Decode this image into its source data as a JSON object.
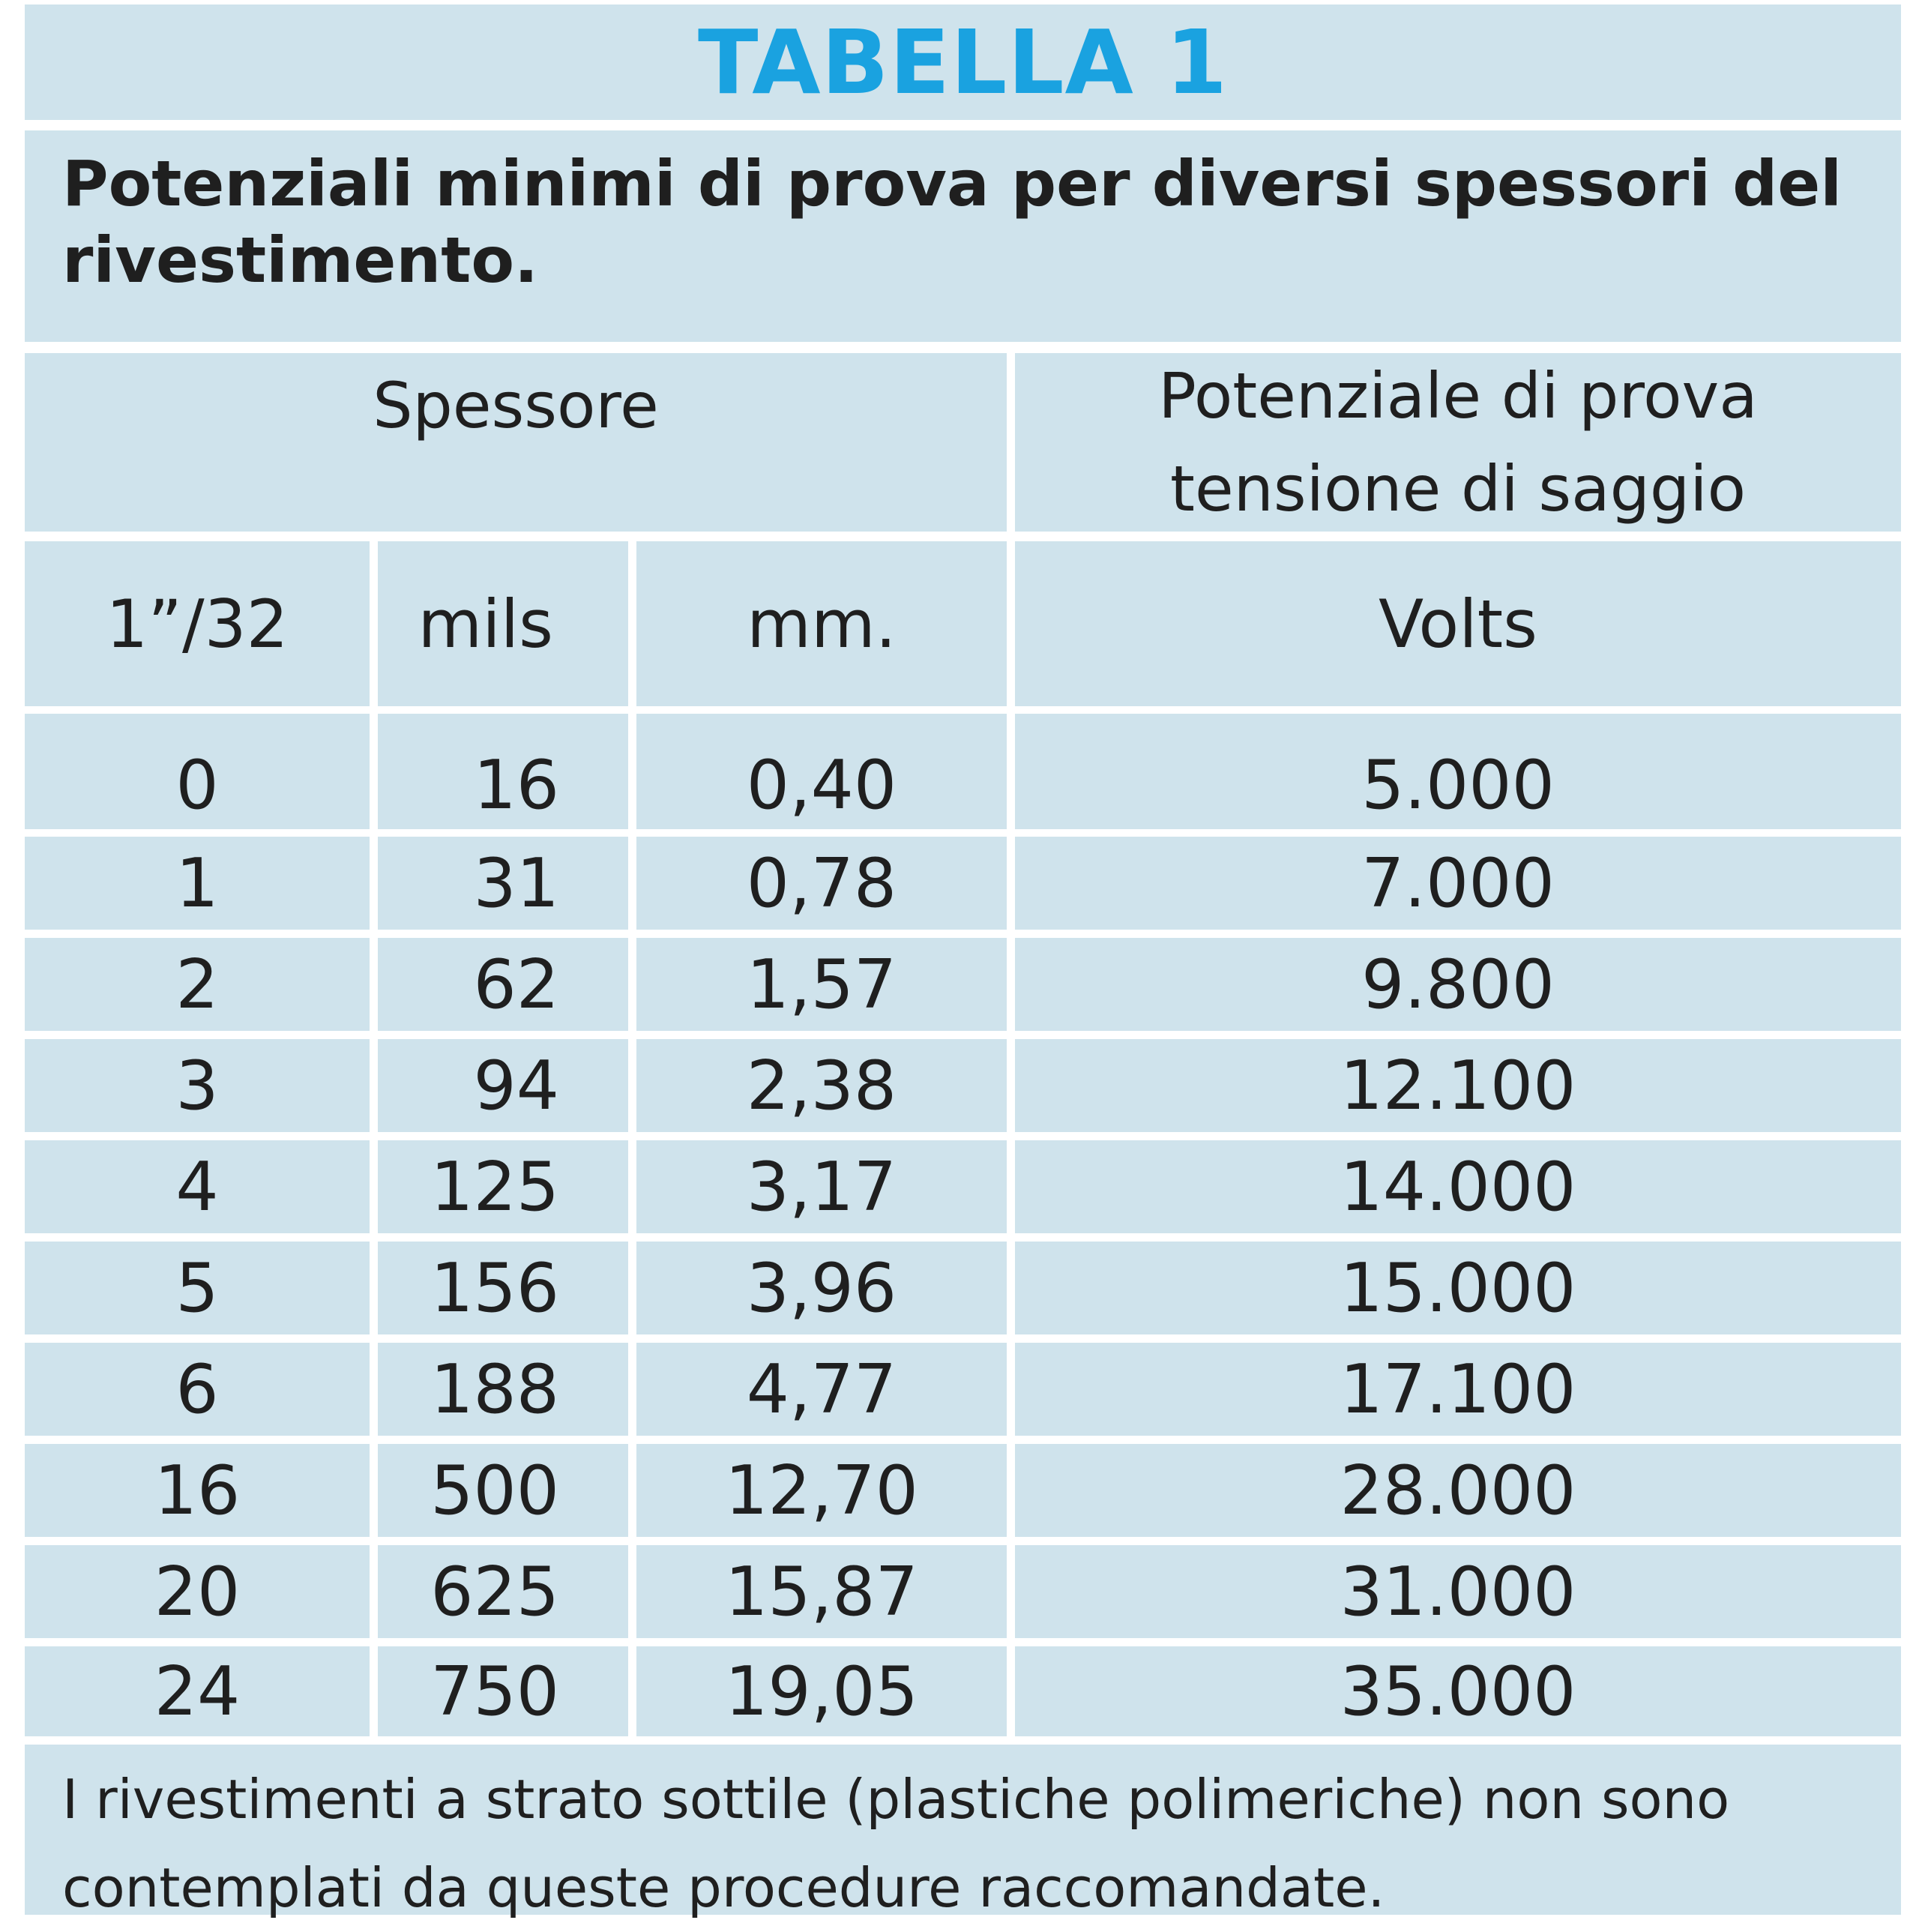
{
  "title": "TABELLA 1",
  "subtitle": "Potenziali minimi di prova per diversi spessori del rivestimento.",
  "groups": {
    "thickness": "Spessore",
    "potential_line1": "Potenziale di prova",
    "potential_line2": "tensione di saggio"
  },
  "columns": {
    "inch32": "1”/32",
    "mils": "mils",
    "mm": "mm.",
    "volts": "Volts"
  },
  "rows": [
    {
      "inch32": "0",
      "mils": "16",
      "mm": "0,40",
      "volts": "5.000"
    },
    {
      "inch32": "1",
      "mils": "31",
      "mm": "0,78",
      "volts": "7.000"
    },
    {
      "inch32": "2",
      "mils": "62",
      "mm": "1,57",
      "volts": "9.800"
    },
    {
      "inch32": "3",
      "mils": "94",
      "mm": "2,38",
      "volts": "12.100"
    },
    {
      "inch32": "4",
      "mils": "125",
      "mm": "3,17",
      "volts": "14.000"
    },
    {
      "inch32": "5",
      "mils": "156",
      "mm": "3,96",
      "volts": "15.000"
    },
    {
      "inch32": "6",
      "mils": "188",
      "mm": "4,77",
      "volts": "17.100"
    },
    {
      "inch32": "16",
      "mils": "500",
      "mm": "12,70",
      "volts": "28.000"
    },
    {
      "inch32": "20",
      "mils": "625",
      "mm": "15,87",
      "volts": "31.000"
    },
    {
      "inch32": "24",
      "mils": "750",
      "mm": "19,05",
      "volts": "35.000"
    }
  ],
  "footer": "I rivestimenti a strato sottile (plastiche polimeriche) non sono contemplati da queste procedure raccomandate.",
  "colors": {
    "cell_background": "#cfe3ec",
    "title": "#1aa2e0",
    "text": "#1f1f1f",
    "separator": "#ffffff"
  }
}
